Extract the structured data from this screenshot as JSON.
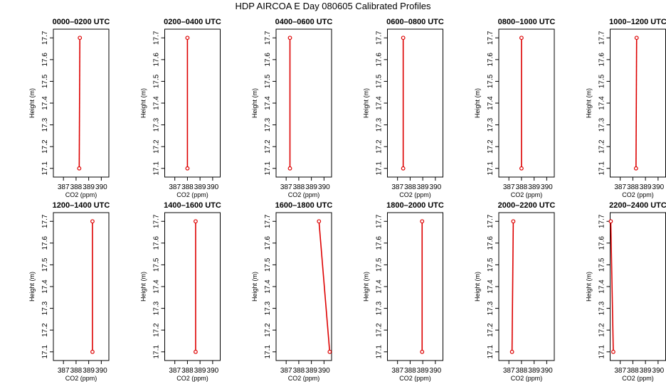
{
  "figure": {
    "title": "HDP AIRCOA E  Day 080605  Calibrated Profiles",
    "line_color": "#dd0000",
    "point_color": "#dd0000"
  },
  "chart_data": [
    {
      "type": "line",
      "title": "0000–0200 UTC",
      "xlabel": "CO2 (ppm)",
      "ylabel": "Height (m)",
      "xlim": [
        386.2,
        390.6
      ],
      "ylim": [
        17.06,
        17.74
      ],
      "xticks": [
        387,
        388,
        389,
        390
      ],
      "yticks": [
        17.1,
        17.2,
        17.3,
        17.4,
        17.5,
        17.6,
        17.7
      ],
      "x": [
        388.3,
        388.25
      ],
      "y": [
        17.7,
        17.1
      ]
    },
    {
      "type": "line",
      "title": "0200–0400 UTC",
      "xlabel": "CO2 (ppm)",
      "ylabel": "Height (m)",
      "xlim": [
        386.2,
        390.6
      ],
      "ylim": [
        17.06,
        17.74
      ],
      "xticks": [
        387,
        388,
        389,
        390
      ],
      "yticks": [
        17.1,
        17.2,
        17.3,
        17.4,
        17.5,
        17.6,
        17.7
      ],
      "x": [
        388.0,
        388.0
      ],
      "y": [
        17.7,
        17.1
      ]
    },
    {
      "type": "line",
      "title": "0400–0600 UTC",
      "xlabel": "CO2 (ppm)",
      "ylabel": "Height (m)",
      "xlim": [
        386.2,
        390.6
      ],
      "ylim": [
        17.06,
        17.74
      ],
      "xticks": [
        387,
        388,
        389,
        390
      ],
      "yticks": [
        17.1,
        17.2,
        17.3,
        17.4,
        17.5,
        17.6,
        17.7
      ],
      "x": [
        387.3,
        387.3
      ],
      "y": [
        17.7,
        17.1
      ]
    },
    {
      "type": "line",
      "title": "0600–0800 UTC",
      "xlabel": "CO2 (ppm)",
      "ylabel": "Height (m)",
      "xlim": [
        386.2,
        390.6
      ],
      "ylim": [
        17.06,
        17.74
      ],
      "xticks": [
        387,
        388,
        389,
        390
      ],
      "yticks": [
        17.1,
        17.2,
        17.3,
        17.4,
        17.5,
        17.6,
        17.7
      ],
      "x": [
        387.45,
        387.45
      ],
      "y": [
        17.7,
        17.1
      ]
    },
    {
      "type": "line",
      "title": "0800–1000 UTC",
      "xlabel": "CO2 (ppm)",
      "ylabel": "Height (m)",
      "xlim": [
        386.2,
        390.6
      ],
      "ylim": [
        17.06,
        17.74
      ],
      "xticks": [
        387,
        388,
        389,
        390
      ],
      "yticks": [
        17.1,
        17.2,
        17.3,
        17.4,
        17.5,
        17.6,
        17.7
      ],
      "x": [
        388.0,
        388.0
      ],
      "y": [
        17.7,
        17.1
      ]
    },
    {
      "type": "line",
      "title": "1000–1200 UTC",
      "xlabel": "CO2 (ppm)",
      "ylabel": "Height (m)",
      "xlim": [
        386.2,
        390.6
      ],
      "ylim": [
        17.06,
        17.74
      ],
      "xticks": [
        387,
        388,
        389,
        390
      ],
      "yticks": [
        17.1,
        17.2,
        17.3,
        17.4,
        17.5,
        17.6,
        17.7
      ],
      "x": [
        388.3,
        388.25
      ],
      "y": [
        17.7,
        17.1
      ]
    },
    {
      "type": "line",
      "title": "1200–1400 UTC",
      "xlabel": "CO2 (ppm)",
      "ylabel": "Height (m)",
      "xlim": [
        386.2,
        390.6
      ],
      "ylim": [
        17.06,
        17.74
      ],
      "xticks": [
        387,
        388,
        389,
        390
      ],
      "yticks": [
        17.1,
        17.2,
        17.3,
        17.4,
        17.5,
        17.6,
        17.7
      ],
      "x": [
        389.3,
        389.3
      ],
      "y": [
        17.7,
        17.1
      ]
    },
    {
      "type": "line",
      "title": "1400–1600 UTC",
      "xlabel": "CO2 (ppm)",
      "ylabel": "Height (m)",
      "xlim": [
        386.2,
        390.6
      ],
      "ylim": [
        17.06,
        17.74
      ],
      "xticks": [
        387,
        388,
        389,
        390
      ],
      "yticks": [
        17.1,
        17.2,
        17.3,
        17.4,
        17.5,
        17.6,
        17.7
      ],
      "x": [
        388.65,
        388.65
      ],
      "y": [
        17.7,
        17.1
      ]
    },
    {
      "type": "line",
      "title": "1600–1800 UTC",
      "xlabel": "CO2 (ppm)",
      "ylabel": "Height (m)",
      "xlim": [
        386.2,
        390.6
      ],
      "ylim": [
        17.06,
        17.74
      ],
      "xticks": [
        387,
        388,
        389,
        390
      ],
      "yticks": [
        17.1,
        17.2,
        17.3,
        17.4,
        17.5,
        17.6,
        17.7
      ],
      "x": [
        389.6,
        390.45
      ],
      "y": [
        17.7,
        17.1
      ]
    },
    {
      "type": "line",
      "title": "1800–2000 UTC",
      "xlabel": "CO2 (ppm)",
      "ylabel": "Height (m)",
      "xlim": [
        386.2,
        390.6
      ],
      "ylim": [
        17.06,
        17.74
      ],
      "xticks": [
        387,
        388,
        389,
        390
      ],
      "yticks": [
        17.1,
        17.2,
        17.3,
        17.4,
        17.5,
        17.6,
        17.7
      ],
      "x": [
        388.95,
        388.95
      ],
      "y": [
        17.7,
        17.1
      ]
    },
    {
      "type": "line",
      "title": "2000–2200 UTC",
      "xlabel": "CO2 (ppm)",
      "ylabel": "Height (m)",
      "xlim": [
        386.2,
        390.6
      ],
      "ylim": [
        17.06,
        17.74
      ],
      "xticks": [
        387,
        388,
        389,
        390
      ],
      "yticks": [
        17.1,
        17.2,
        17.3,
        17.4,
        17.5,
        17.6,
        17.7
      ],
      "x": [
        387.35,
        387.25
      ],
      "y": [
        17.7,
        17.1
      ]
    },
    {
      "type": "line",
      "title": "2200–2400 UTC",
      "xlabel": "CO2 (ppm)",
      "ylabel": "Height (m)",
      "xlim": [
        386.2,
        390.6
      ],
      "ylim": [
        17.06,
        17.74
      ],
      "xticks": [
        387,
        388,
        389,
        390
      ],
      "yticks": [
        17.1,
        17.2,
        17.3,
        17.4,
        17.5,
        17.6,
        17.7
      ],
      "x": [
        386.25,
        386.45
      ],
      "y": [
        17.7,
        17.1
      ]
    }
  ]
}
